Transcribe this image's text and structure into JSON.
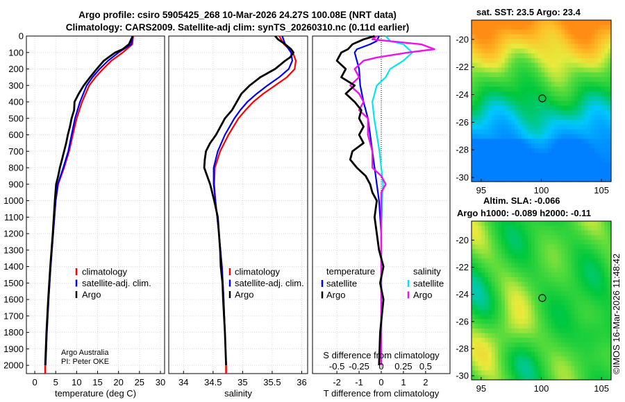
{
  "header": {
    "title_line1": "Argo profile: csiro 5905425_268 10-Mar-2026 24.27S 100.08E (NRT data)",
    "title_line2": "Climatology: CARS2009. Satellite-adj clim: synTS_20260310.nc (0.11d earlier)"
  },
  "sst_map": {
    "title": "sat. SST: 23.5 Argo: 23.4",
    "xticks": [
      95,
      100,
      105
    ],
    "yticks": [
      -20,
      -22,
      -24,
      -26,
      -28,
      -30
    ],
    "float_lon": 100.08,
    "float_lat": -24.27
  },
  "sla_map": {
    "title_line1": "Altim. SLA: -0.066",
    "title_line2": "Argo h1000: -0.089 h2000: -0.11",
    "xticks": [
      95,
      100,
      105
    ],
    "yticks": [
      -20,
      -22,
      -24,
      -26,
      -28,
      -30
    ],
    "float_lon": 100.08,
    "float_lat": -24.27
  },
  "credits": {
    "line1": "Argo Australia",
    "line2": "PI: Peter OKE"
  },
  "timestamp": "©IMOS 16-Mar-2026 11:48:42",
  "legend": {
    "climatology": "climatology",
    "satellite_adj": "satellite-adj. clim.",
    "argo": "Argo",
    "temperature": "temperature",
    "salinity": "salinity",
    "satellite": "satellite"
  },
  "colors": {
    "climatology": "#ff0000",
    "satellite_adj": "#0000ff",
    "argo": "#000000",
    "s_satellite": "#00e6ee",
    "s_argo": "#ee11ee",
    "grid": "#d9d9d9"
  },
  "chart_data": [
    {
      "type": "line",
      "name": "temperature profile",
      "xlabel": "temperature (deg C)",
      "ylabel": "",
      "xlim": [
        -2,
        31
      ],
      "ylim": [
        2050,
        0
      ],
      "xticks": [
        0,
        5,
        10,
        15,
        20,
        25,
        30
      ],
      "yticks": [
        0,
        100,
        200,
        300,
        400,
        500,
        600,
        700,
        800,
        900,
        1000,
        1100,
        1200,
        1300,
        1400,
        1500,
        1600,
        1700,
        1800,
        1900,
        2000
      ],
      "series": [
        {
          "name": "climatology",
          "depth": [
            0,
            50,
            100,
            150,
            200,
            250,
            300,
            400,
            500,
            600,
            700,
            800,
            900,
            1000,
            1200,
            1400,
            1600,
            1800,
            2000
          ],
          "values": [
            23.5,
            23.3,
            21.0,
            18.3,
            16.3,
            14.5,
            13.0,
            11.3,
            10.0,
            9.1,
            8.2,
            7.0,
            5.6,
            5.0,
            4.4,
            3.8,
            3.3,
            2.9,
            2.6
          ]
        },
        {
          "name": "satellite-adj. clim.",
          "depth": [
            0,
            50,
            100,
            150,
            200,
            250,
            300,
            400,
            500,
            600,
            700,
            800,
            900,
            1000,
            1200,
            1400,
            1600,
            1800,
            2000
          ],
          "values": [
            23.4,
            23.0,
            20.0,
            17.5,
            15.5,
            13.8,
            12.4,
            10.8,
            9.6,
            8.8,
            8.0,
            6.8,
            5.5,
            5.0,
            4.4,
            3.8,
            3.3,
            2.9,
            2.6
          ]
        },
        {
          "name": "Argo",
          "depth": [
            0,
            20,
            50,
            80,
            100,
            150,
            200,
            250,
            300,
            350,
            400,
            450,
            500,
            550,
            600,
            650,
            700,
            750,
            800,
            850,
            900,
            1000,
            1200,
            1400,
            1600,
            1800,
            2000
          ],
          "values": [
            23.4,
            23.0,
            22.5,
            21.0,
            19.2,
            16.5,
            14.8,
            13.2,
            11.7,
            10.5,
            9.5,
            9.4,
            8.8,
            8.4,
            7.9,
            7.5,
            7.0,
            6.5,
            6.0,
            5.6,
            5.1,
            4.8,
            4.3,
            3.7,
            3.2,
            2.8,
            2.5
          ]
        }
      ]
    },
    {
      "type": "line",
      "name": "salinity profile",
      "xlabel": "salinity",
      "ylabel": "",
      "xlim": [
        33.75,
        36.1
      ],
      "ylim": [
        2050,
        0
      ],
      "xticks": [
        34,
        34.5,
        35,
        35.5,
        36
      ],
      "series": [
        {
          "name": "climatology",
          "depth": [
            0,
            50,
            100,
            150,
            200,
            250,
            300,
            350,
            400,
            450,
            500,
            600,
            700,
            800,
            900,
            1000,
            1200,
            1400,
            1600,
            1800,
            2000
          ],
          "values": [
            35.62,
            35.7,
            35.85,
            35.9,
            35.88,
            35.75,
            35.55,
            35.35,
            35.18,
            35.05,
            34.93,
            34.76,
            34.62,
            34.53,
            34.52,
            34.54,
            34.6,
            34.65,
            34.68,
            34.7,
            34.72
          ]
        },
        {
          "name": "satellite-adj. clim.",
          "depth": [
            0,
            50,
            100,
            150,
            200,
            250,
            300,
            350,
            400,
            450,
            500,
            600,
            700,
            800,
            900,
            1000,
            1200,
            1400,
            1600,
            1800,
            2000
          ],
          "values": [
            35.67,
            35.72,
            35.82,
            35.84,
            35.78,
            35.62,
            35.42,
            35.24,
            35.08,
            34.96,
            34.86,
            34.7,
            34.58,
            34.51,
            34.51,
            34.54,
            34.6,
            34.65,
            34.68,
            34.7,
            34.72
          ]
        },
        {
          "name": "Argo",
          "depth": [
            0,
            20,
            50,
            80,
            100,
            130,
            150,
            200,
            250,
            300,
            350,
            400,
            450,
            500,
            600,
            650,
            700,
            750,
            800,
            850,
            900,
            1000,
            1100,
            1200,
            1300,
            1400,
            1500,
            1600,
            1800,
            2000
          ],
          "values": [
            35.55,
            35.6,
            35.72,
            35.82,
            35.86,
            35.8,
            35.72,
            35.55,
            35.3,
            35.12,
            34.98,
            34.9,
            34.82,
            34.7,
            34.55,
            34.45,
            34.38,
            34.36,
            34.35,
            34.4,
            34.45,
            34.52,
            34.58,
            34.6,
            34.62,
            34.63,
            34.66,
            34.67,
            34.7,
            34.72
          ]
        }
      ]
    },
    {
      "type": "line",
      "name": "difference from climatology",
      "xlabel": "T difference from climatology",
      "xlabel_top": "S difference from climatology",
      "xlim": [
        -3.1,
        3.1
      ],
      "ylim": [
        2050,
        0
      ],
      "xticks": [
        -2,
        -1,
        0,
        1,
        2
      ],
      "xticks_top": [
        -0.5,
        -0.25,
        0,
        0.25,
        0.5
      ],
      "top_tick_labels": [
        "-0.5",
        "-0.25",
        "0",
        "0.25",
        "0.5"
      ],
      "series": [
        {
          "name": "T satellite",
          "depth": [
            0,
            30,
            50,
            80,
            100,
            150,
            200,
            300,
            400,
            500,
            600,
            700,
            800,
            900,
            1000,
            1200,
            1400,
            1600,
            1800,
            2000
          ],
          "values": [
            -0.1,
            -0.2,
            -0.5,
            -1.1,
            -1.2,
            -1.1,
            -1.0,
            -0.95,
            -0.8,
            -0.6,
            -0.5,
            -0.4,
            -0.3,
            -0.2,
            -0.1,
            0,
            0,
            0,
            0,
            0
          ]
        },
        {
          "name": "T Argo",
          "depth": [
            0,
            20,
            50,
            80,
            100,
            150,
            200,
            250,
            300,
            350,
            400,
            450,
            500,
            550,
            600,
            650,
            700,
            750,
            800,
            850,
            900,
            950,
            1000,
            1100,
            1200,
            1300,
            1400,
            1500,
            1600,
            1800,
            2000
          ],
          "values": [
            -0.3,
            -0.8,
            -1.3,
            -1.5,
            -1.8,
            -2.0,
            -1.6,
            -1.8,
            -1.2,
            -1.6,
            -1.2,
            -0.9,
            -1.0,
            -0.8,
            -1.0,
            -0.8,
            -1.3,
            -1.4,
            -1.1,
            -0.7,
            -0.5,
            -0.4,
            -0.2,
            -0.3,
            -0.2,
            -0.1,
            0.1,
            -0.05,
            0.1,
            -0.05,
            -0.1
          ]
        },
        {
          "name": "S satellite",
          "depth": [
            0,
            30,
            50,
            100,
            150,
            200,
            250,
            300,
            400,
            500,
            600,
            700,
            800,
            900,
            1000,
            1200,
            1500,
            2000
          ],
          "values": [
            0.05,
            0.1,
            0.25,
            0.35,
            0.25,
            0.1,
            0.05,
            -0.05,
            -0.1,
            -0.08,
            -0.05,
            -0.02,
            0,
            0.02,
            0.01,
            0,
            0,
            0
          ]
        },
        {
          "name": "S Argo",
          "depth": [
            0,
            20,
            50,
            80,
            100,
            130,
            150,
            200,
            250,
            300,
            350,
            400,
            450,
            500,
            600,
            700,
            800,
            850,
            900,
            950,
            1000,
            1200,
            1500,
            2000
          ],
          "values": [
            -0.05,
            -0.1,
            0.45,
            0.6,
            0.3,
            -0.05,
            -0.2,
            -0.3,
            -0.25,
            -0.35,
            -0.25,
            -0.2,
            -0.25,
            -0.15,
            -0.15,
            -0.1,
            -0.1,
            0.0,
            0.05,
            0.0,
            0.0,
            0.0,
            0.0,
            0.0
          ]
        }
      ]
    }
  ]
}
